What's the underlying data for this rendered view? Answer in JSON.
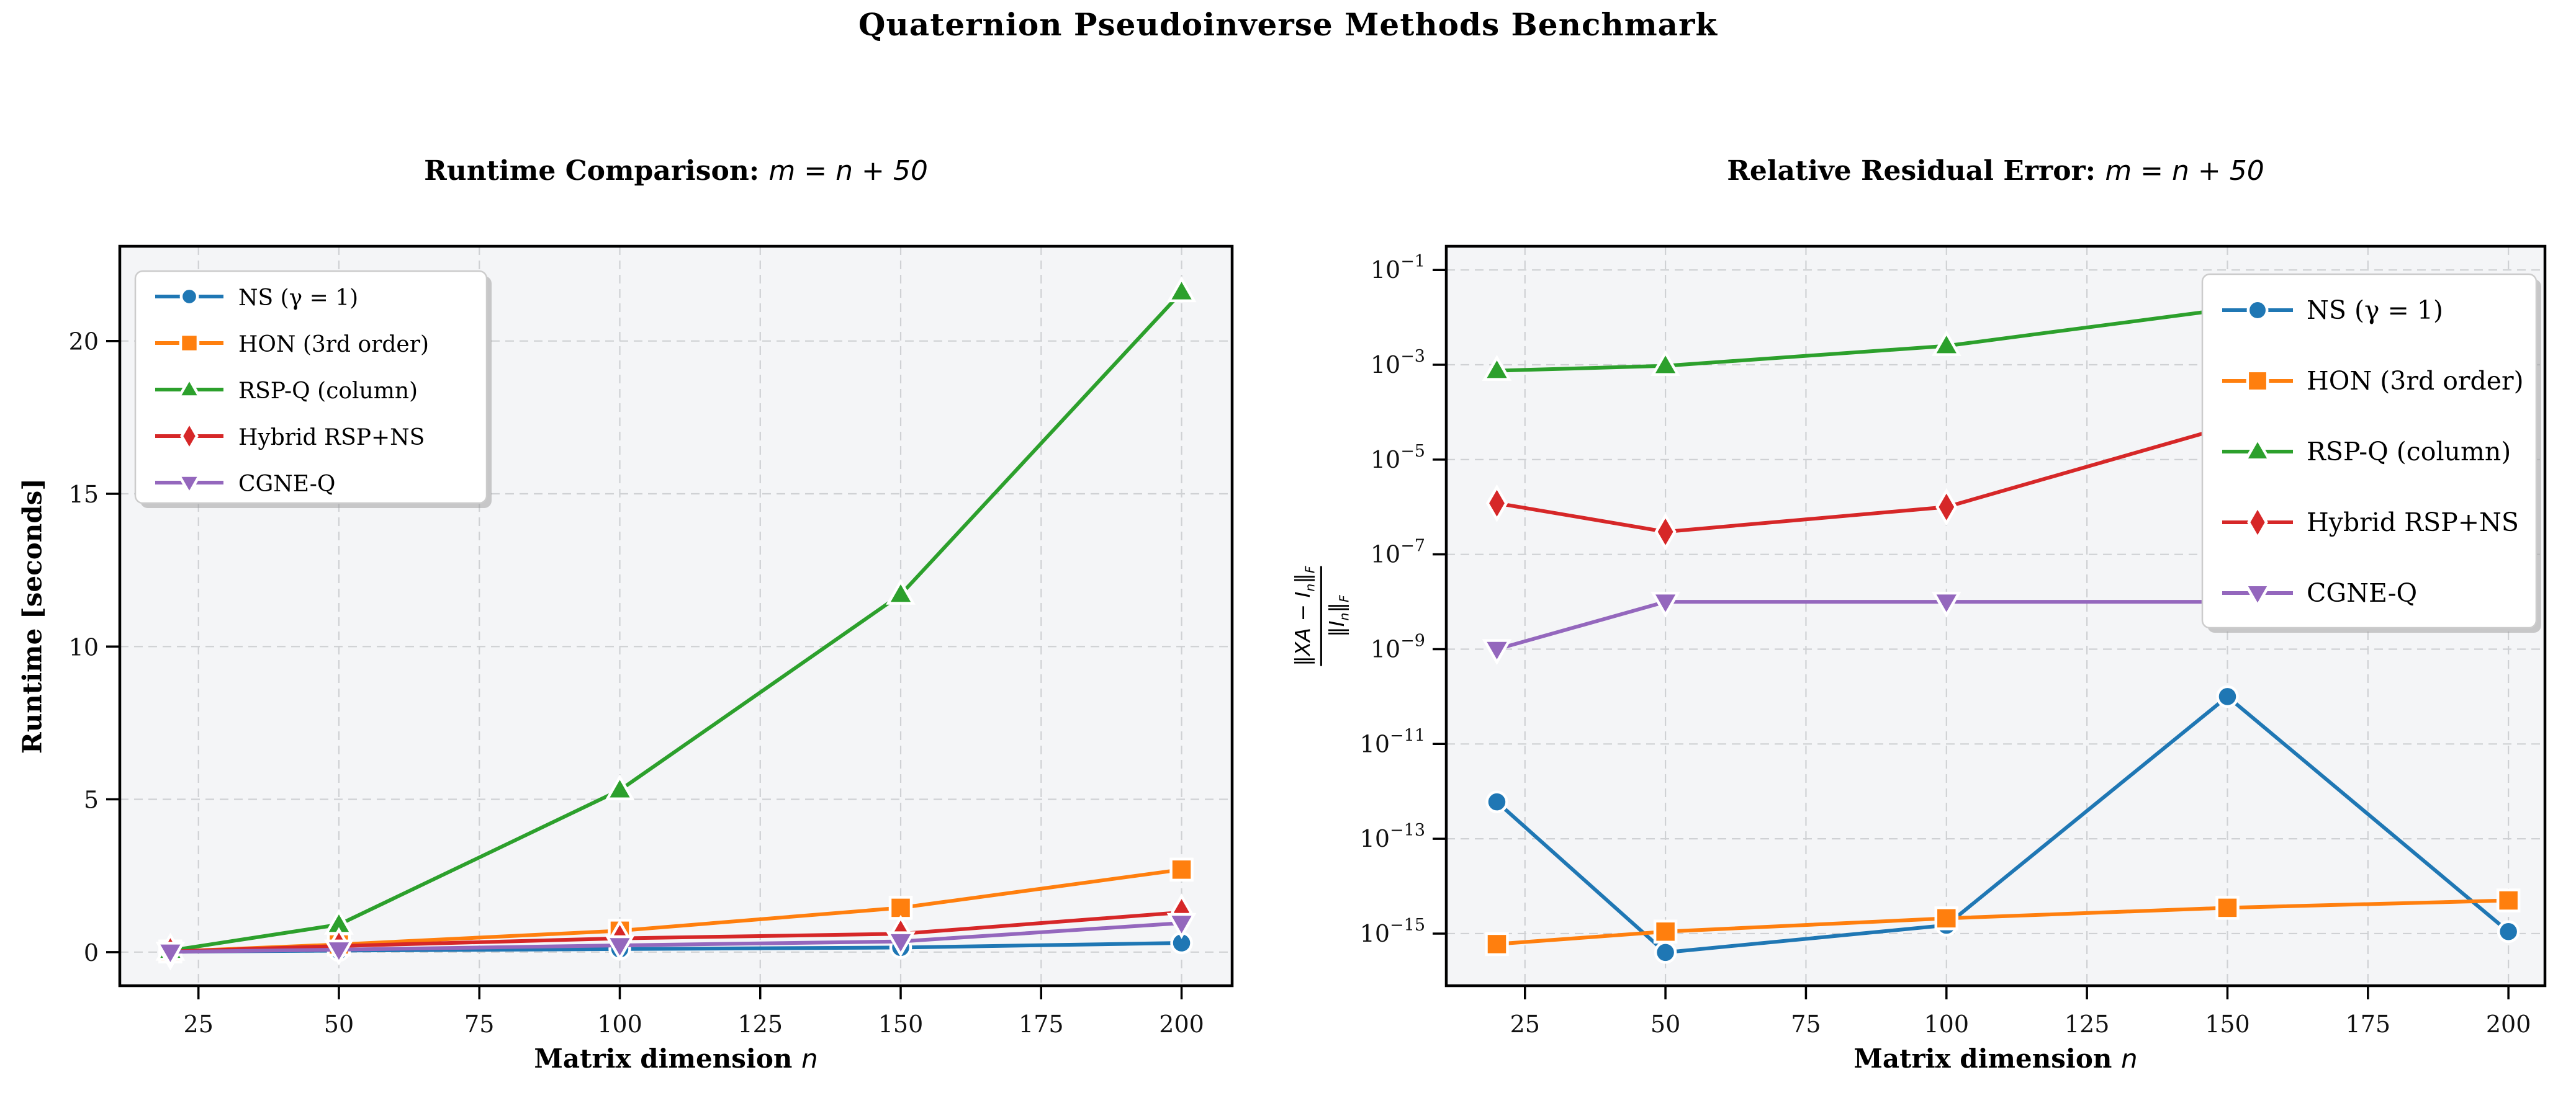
{
  "suptitle": "Quaternion Pseudoinverse Methods Benchmark",
  "palette": {
    "blue": "#1f77b4",
    "orange": "#ff7f0e",
    "green": "#2ca02c",
    "red": "#d62728",
    "purple": "#9467bd",
    "plot_bg": "#f4f5f7",
    "grid": "#cfd1d4",
    "spine": "#000000",
    "legend_edge": "#cccccc",
    "legend_bg": "#ffffff"
  },
  "chart_data": [
    {
      "type": "line",
      "title": "Runtime Comparison:",
      "title_math": "m = n + 50",
      "xlabel": "Matrix dimension",
      "xlabel_math": "n",
      "ylabel": "Runtime [seconds]",
      "yscale": "linear",
      "grid": true,
      "legend_position": "upper left",
      "x": [
        20,
        50,
        100,
        150,
        200
      ],
      "xlim": [
        11,
        209
      ],
      "ylim": [
        -1.1,
        23.1
      ],
      "xticks": [
        25,
        50,
        75,
        100,
        125,
        150,
        175,
        200
      ],
      "yticks": [
        0,
        5,
        10,
        15,
        20
      ],
      "series": [
        {
          "name": "NS (γ = 1)",
          "marker": "circle",
          "color": "#1f77b4",
          "values": [
            0.01,
            0.05,
            0.1,
            0.15,
            0.3
          ]
        },
        {
          "name": "HON (3rd order)",
          "marker": "square",
          "color": "#ff7f0e",
          "values": [
            0.02,
            0.25,
            0.7,
            1.45,
            2.7
          ]
        },
        {
          "name": "RSP-Q (column)",
          "marker": "triangle-up",
          "color": "#2ca02c",
          "values": [
            0.05,
            0.9,
            5.3,
            11.7,
            21.6
          ]
        },
        {
          "name": "Hybrid RSP+NS",
          "marker": "diamond",
          "color": "#d62728",
          "values": [
            0.02,
            0.2,
            0.45,
            0.6,
            1.3
          ]
        },
        {
          "name": "CGNE-Q",
          "marker": "triangle-down",
          "color": "#9467bd",
          "values": [
            0.01,
            0.08,
            0.22,
            0.35,
            0.95
          ]
        }
      ]
    },
    {
      "type": "line",
      "title": "Relative Residual Error:",
      "title_math": "m = n + 50",
      "xlabel": "Matrix dimension",
      "xlabel_math": "n",
      "ylabel_fraction": {
        "num": [
          "‖",
          "XA − I",
          "n",
          "‖",
          "F"
        ],
        "den": [
          "‖",
          "I",
          "n",
          "‖",
          "F"
        ]
      },
      "yscale": "log",
      "grid": true,
      "legend_position": "upper right",
      "x": [
        20,
        50,
        100,
        150,
        200
      ],
      "xlim": [
        11,
        206.5
      ],
      "ylim_exponents": [
        -16.1,
        -0.5
      ],
      "xticks": [
        25,
        50,
        75,
        100,
        125,
        150,
        175,
        200
      ],
      "ytick_exponents": [
        -1,
        -3,
        -5,
        -7,
        -9,
        -11,
        -13,
        -15
      ],
      "series": [
        {
          "name": "NS (γ = 1)",
          "marker": "circle",
          "color": "#1f77b4",
          "values": [
            6e-13,
            4e-16,
            1.5e-15,
            1e-10,
            1.1e-15
          ]
        },
        {
          "name": "HON (3rd order)",
          "marker": "square",
          "color": "#ff7f0e",
          "values": [
            6e-16,
            1.1e-15,
            2.1e-15,
            3.5e-15,
            5e-15
          ]
        },
        {
          "name": "RSP-Q (column)",
          "marker": "triangle-up",
          "color": "#2ca02c",
          "values": [
            0.00075,
            0.00095,
            0.0025,
            0.015,
            0.04
          ]
        },
        {
          "name": "Hybrid RSP+NS",
          "marker": "diamond",
          "color": "#d62728",
          "values": [
            1.2e-06,
            3e-07,
            1e-06,
            5e-05,
            8e-09
          ]
        },
        {
          "name": "CGNE-Q",
          "marker": "triangle-down",
          "color": "#9467bd",
          "values": [
            1e-09,
            1e-08,
            1e-08,
            1e-08,
            1e-08
          ]
        }
      ]
    }
  ]
}
